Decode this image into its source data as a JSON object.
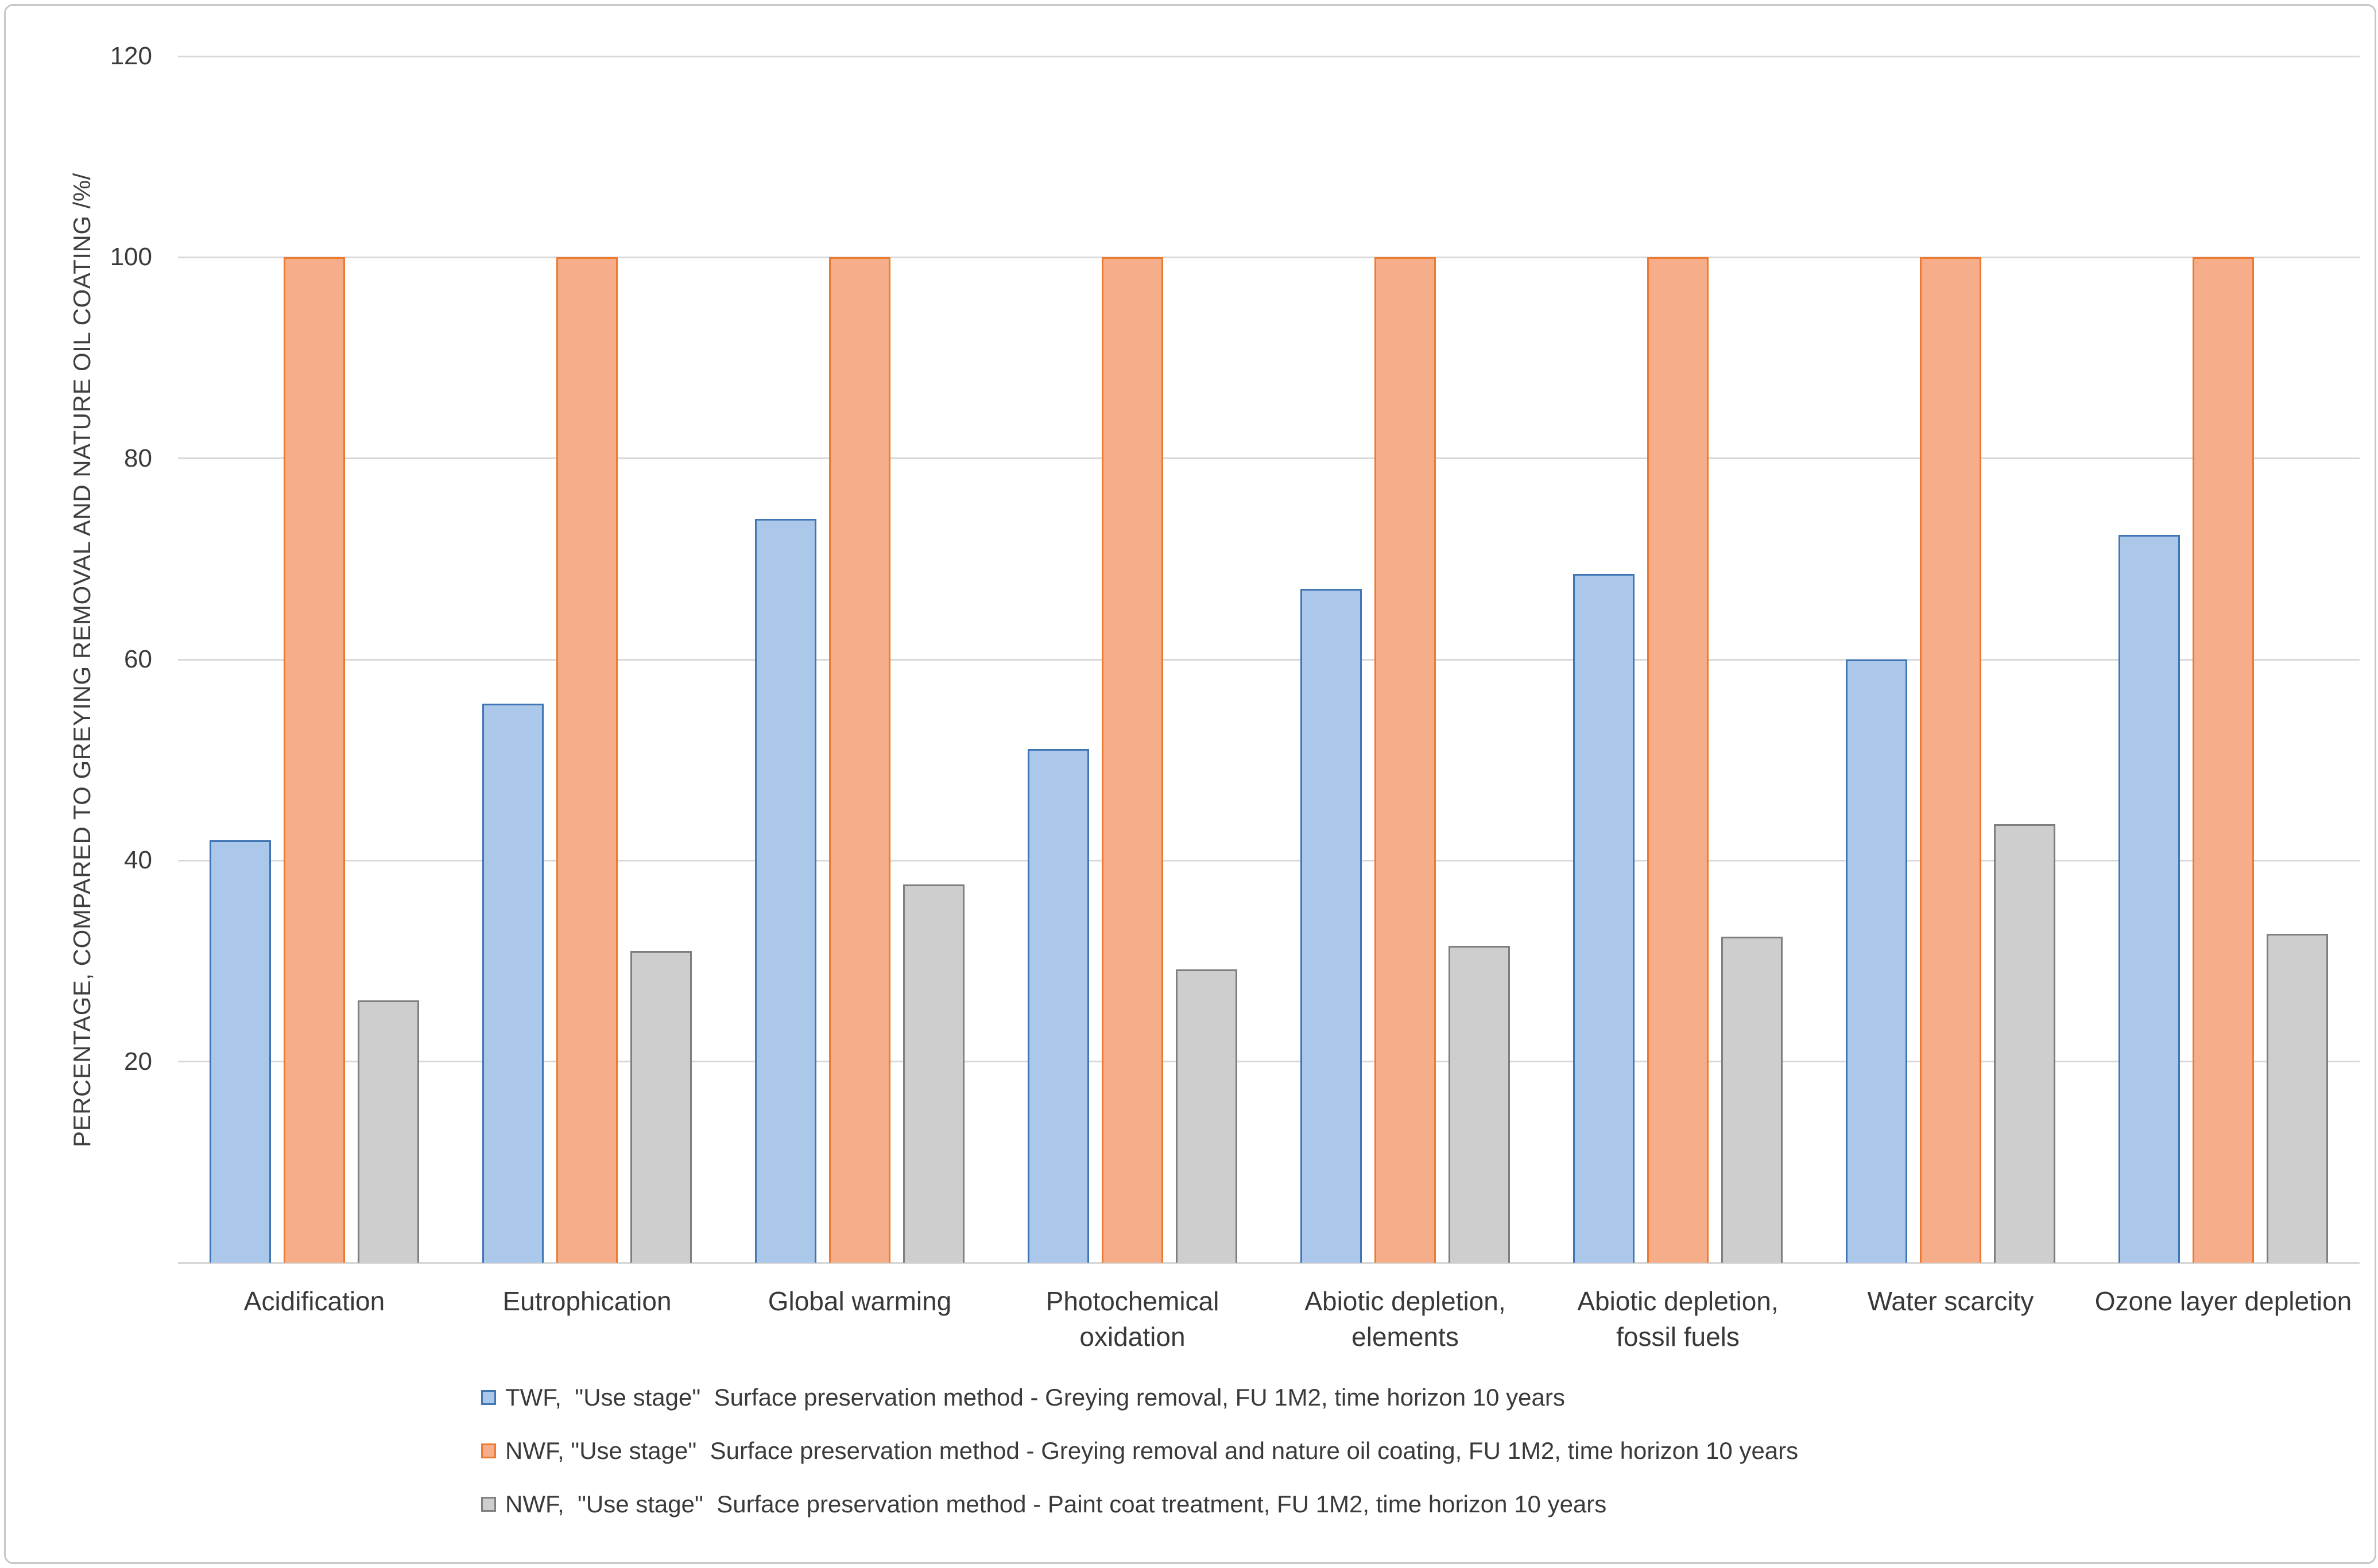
{
  "figure": {
    "background": "#ffffff",
    "border_color": "#c6c6c6"
  },
  "chart_data": {
    "type": "bar",
    "title": "",
    "xlabel": "",
    "ylabel": "PERCENTAGE, COMPARED TO GREYING REMOVAL AND NATURE OIL COATING /%/",
    "ylim": [
      0,
      120
    ],
    "yticks": [
      20,
      40,
      60,
      80,
      100,
      120
    ],
    "grid": true,
    "gridline_color": "#d8d8d8",
    "legend_position": "bottom-left",
    "categories": [
      "Acidification",
      "Eutrophication",
      "Global warming",
      "Photochemical\noxidation",
      "Abiotic depletion,\nelements",
      "Abiotic depletion,\nfossil fuels",
      "Water scarcity",
      "Ozone layer depletion"
    ],
    "series": [
      {
        "name": "TWF,  \"Use stage\"  Surface preservation method - Greying removal, FU 1M2, time horizon 10 years",
        "fill": "#abc7e9",
        "border": "#4076b4",
        "values": [
          42,
          55.6,
          74,
          51.1,
          67,
          68.5,
          60,
          72.4
        ]
      },
      {
        "name": "NWF, \"Use stage\"  Surface preservation method - Greying removal and nature oil coating, FU 1M2, time horizon 10 years",
        "fill": "#f5ae89",
        "border": "#ec7a30",
        "values": [
          100,
          100,
          100,
          100,
          100,
          100,
          100,
          100
        ]
      },
      {
        "name": "NWF,  \"Use stage\"  Surface preservation method - Paint coat treatment, FU 1M2, time horizon 10 years",
        "fill": "#cecece",
        "border": "#7f7f7f",
        "values": [
          26.1,
          31,
          37.6,
          29.2,
          31.5,
          32.4,
          43.6,
          32.7
        ]
      }
    ]
  }
}
